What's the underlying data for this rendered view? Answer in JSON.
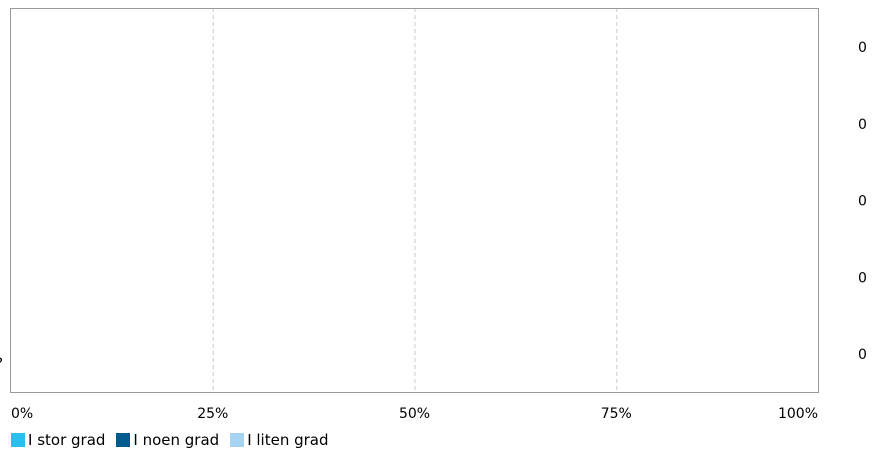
{
  "chart_data": {
    "type": "bar",
    "orientation": "horizontal",
    "stacked": true,
    "percent_scale": true,
    "categories": [
      "",
      "",
      "",
      "",
      "?"
    ],
    "series": [
      {
        "name": "I stor grad",
        "color": "#29c0ee",
        "values": [
          0,
          0,
          0,
          0,
          0
        ]
      },
      {
        "name": "I noen grad",
        "color": "#005b8f",
        "values": [
          0,
          0,
          0,
          0,
          0
        ]
      },
      {
        "name": "I liten grad",
        "color": "#a7d3f3",
        "values": [
          0,
          0,
          0,
          0,
          0
        ]
      }
    ],
    "totals": [
      "0",
      "0",
      "0",
      "0",
      "0"
    ],
    "x_ticks": [
      "0%",
      "25%",
      "50%",
      "75%",
      "100%"
    ],
    "xlim": [
      0,
      100
    ],
    "grid": "vertical dashed",
    "legend_position": "bottom-left",
    "title": "",
    "xlabel": "",
    "ylabel": ""
  }
}
